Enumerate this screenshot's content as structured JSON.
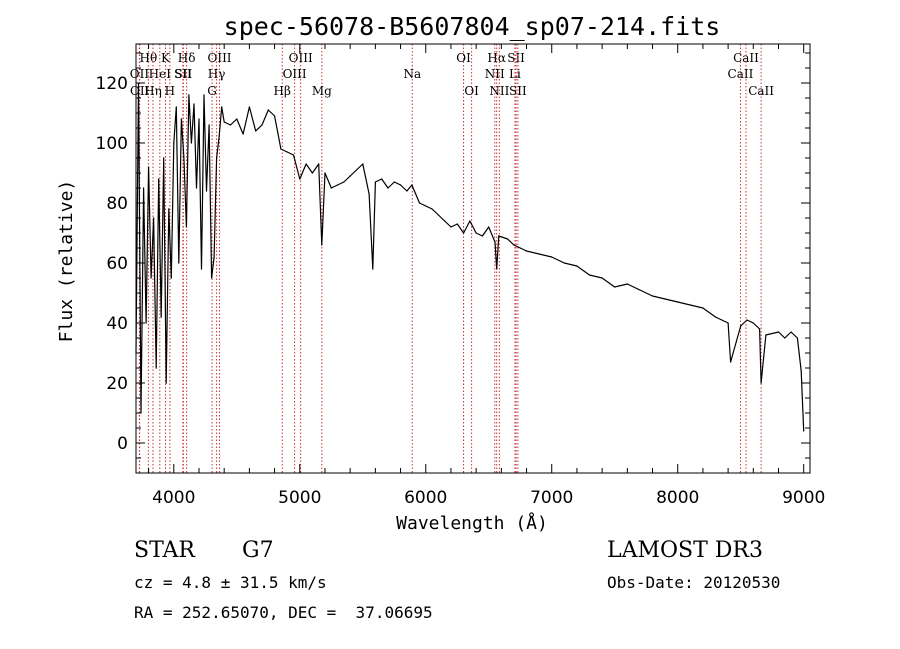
{
  "chart_data": {
    "type": "line",
    "title": "spec-56078-B5607804_sp07-214.fits",
    "xlabel": "Wavelength (Å)",
    "ylabel": "Flux (relative)",
    "xlim": [
      3700,
      9050
    ],
    "ylim": [
      -10,
      133
    ],
    "xticks": [
      4000,
      5000,
      6000,
      7000,
      8000,
      9000
    ],
    "yticks": [
      0,
      20,
      40,
      60,
      80,
      100,
      120
    ],
    "series": [
      {
        "name": "flux",
        "x": [
          3700,
          3720,
          3740,
          3760,
          3780,
          3800,
          3820,
          3840,
          3860,
          3880,
          3900,
          3920,
          3940,
          3960,
          3980,
          4000,
          4020,
          4040,
          4060,
          4080,
          4100,
          4120,
          4140,
          4160,
          4180,
          4200,
          4220,
          4240,
          4260,
          4280,
          4300,
          4320,
          4340,
          4360,
          4380,
          4400,
          4450,
          4500,
          4550,
          4600,
          4650,
          4700,
          4750,
          4800,
          4850,
          4900,
          4950,
          5000,
          5050,
          5100,
          5150,
          5175,
          5200,
          5250,
          5300,
          5350,
          5400,
          5450,
          5500,
          5550,
          5580,
          5600,
          5650,
          5700,
          5750,
          5800,
          5850,
          5890,
          5950,
          6000,
          6050,
          6100,
          6150,
          6200,
          6250,
          6300,
          6350,
          6400,
          6450,
          6500,
          6550,
          6563,
          6580,
          6650,
          6700,
          6750,
          6800,
          6900,
          7000,
          7100,
          7200,
          7300,
          7400,
          7500,
          7600,
          7700,
          7800,
          7900,
          8000,
          8100,
          8200,
          8300,
          8400,
          8420,
          8500,
          8550,
          8600,
          8650,
          8662,
          8700,
          8800,
          8850,
          8900,
          8950,
          8980,
          9000
        ],
        "values": [
          30,
          120,
          10,
          85,
          40,
          92,
          55,
          75,
          25,
          88,
          42,
          95,
          20,
          78,
          55,
          100,
          112,
          60,
          108,
          95,
          72,
          116,
          100,
          113,
          85,
          108,
          58,
          116,
          84,
          106,
          55,
          62,
          95,
          102,
          112,
          107,
          106,
          108,
          103,
          112,
          104,
          106,
          111,
          109,
          98,
          97,
          96,
          88,
          93,
          90,
          93,
          66,
          90,
          85,
          86,
          87,
          89,
          91,
          93,
          83,
          58,
          87,
          88,
          85,
          87,
          86,
          84,
          86,
          80,
          79,
          78,
          76,
          74,
          72,
          73,
          70,
          74,
          70,
          69,
          72,
          67,
          58,
          69,
          68,
          66,
          65,
          64,
          63,
          62,
          60,
          59,
          56,
          55,
          52,
          53,
          51,
          49,
          48,
          47,
          46,
          45,
          42,
          40,
          27,
          39,
          41,
          40,
          38,
          20,
          36,
          37,
          35,
          37,
          35,
          24,
          4
        ]
      }
    ],
    "line_markers": [
      {
        "label": "Hθ",
        "wavelength": 3798,
        "row": 1
      },
      {
        "label": "OII",
        "wavelength": 3727,
        "row": 2
      },
      {
        "label": "OII",
        "wavelength": 3729,
        "row": 3
      },
      {
        "label": "HeI",
        "wavelength": 3889,
        "row": 2
      },
      {
        "label": "Hη",
        "wavelength": 3835,
        "row": 3
      },
      {
        "label": "K",
        "wavelength": 3934,
        "row": 1
      },
      {
        "label": "SII",
        "wavelength": 4072,
        "row": 2
      },
      {
        "label": "H",
        "wavelength": 3969,
        "row": 3
      },
      {
        "label": "Hδ",
        "wavelength": 4102,
        "row": 1
      },
      {
        "label": "SII",
        "wavelength": 4076,
        "row": 2
      },
      {
        "label": "OIII",
        "wavelength": 4363,
        "row": 1
      },
      {
        "label": "Hγ",
        "wavelength": 4340,
        "row": 2
      },
      {
        "label": "G",
        "wavelength": 4304,
        "row": 3
      },
      {
        "label": "OIII",
        "wavelength": 5007,
        "row": 1
      },
      {
        "label": "OIII",
        "wavelength": 4959,
        "row": 2
      },
      {
        "label": "Hβ",
        "wavelength": 4861,
        "row": 3
      },
      {
        "label": "Mg",
        "wavelength": 5175,
        "row": 3
      },
      {
        "label": "Na",
        "wavelength": 5893,
        "row": 2
      },
      {
        "label": "OI",
        "wavelength": 6300,
        "row": 1
      },
      {
        "label": "OI",
        "wavelength": 6364,
        "row": 3
      },
      {
        "label": "Hα",
        "wavelength": 6563,
        "row": 1
      },
      {
        "label": "NII",
        "wavelength": 6548,
        "row": 2
      },
      {
        "label": "NII",
        "wavelength": 6584,
        "row": 3
      },
      {
        "label": "SII",
        "wavelength": 6717,
        "row": 1
      },
      {
        "label": "Li",
        "wavelength": 6708,
        "row": 2
      },
      {
        "label": "SII",
        "wavelength": 6731,
        "row": 3
      },
      {
        "label": "CaII",
        "wavelength": 8542,
        "row": 1
      },
      {
        "label": "CaII",
        "wavelength": 8498,
        "row": 2
      },
      {
        "label": "CaII",
        "wavelength": 8662,
        "row": 3
      }
    ]
  },
  "info": {
    "object_class": "STAR",
    "subclass": "G7",
    "survey": "LAMOST DR3",
    "redshift": "cz = 4.8 ± 31.5 km/s",
    "obs_date": "Obs-Date: 20120530",
    "coordinates": "RA = 252.65070, DEC =  37.06695"
  },
  "colors": {
    "line": "#000000",
    "marker": "#cc3333"
  }
}
